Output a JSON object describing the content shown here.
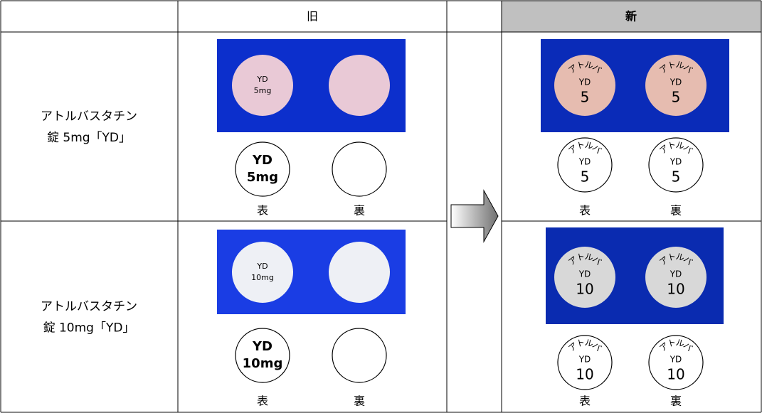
{
  "header": {
    "old": "旧",
    "new": "新"
  },
  "rows": [
    {
      "product": [
        "アトルバスタチン",
        "錠 5mg「YD」"
      ],
      "old": {
        "photo_imprint": [
          "YD",
          "5mg"
        ],
        "drawing_imprint": [
          "YD",
          "5mg"
        ],
        "front": "表",
        "back": "裏"
      },
      "new": {
        "photo_imprint": [
          "アトルバ",
          "YD",
          "5"
        ],
        "drawing_imprint": [
          "アトルバ",
          "YD",
          "5"
        ],
        "front": "表",
        "back": "裏"
      }
    },
    {
      "product": [
        "アトルバスタチン",
        "錠 10mg「YD」"
      ],
      "old": {
        "photo_imprint": [
          "YD",
          "10mg"
        ],
        "drawing_imprint": [
          "YD",
          "10mg"
        ],
        "front": "表",
        "back": "裏"
      },
      "new": {
        "photo_imprint": [
          "アトルバ",
          "YD",
          "10"
        ],
        "drawing_imprint": [
          "アトルバ",
          "YD",
          "10"
        ],
        "front": "表",
        "back": "裏"
      }
    }
  ]
}
